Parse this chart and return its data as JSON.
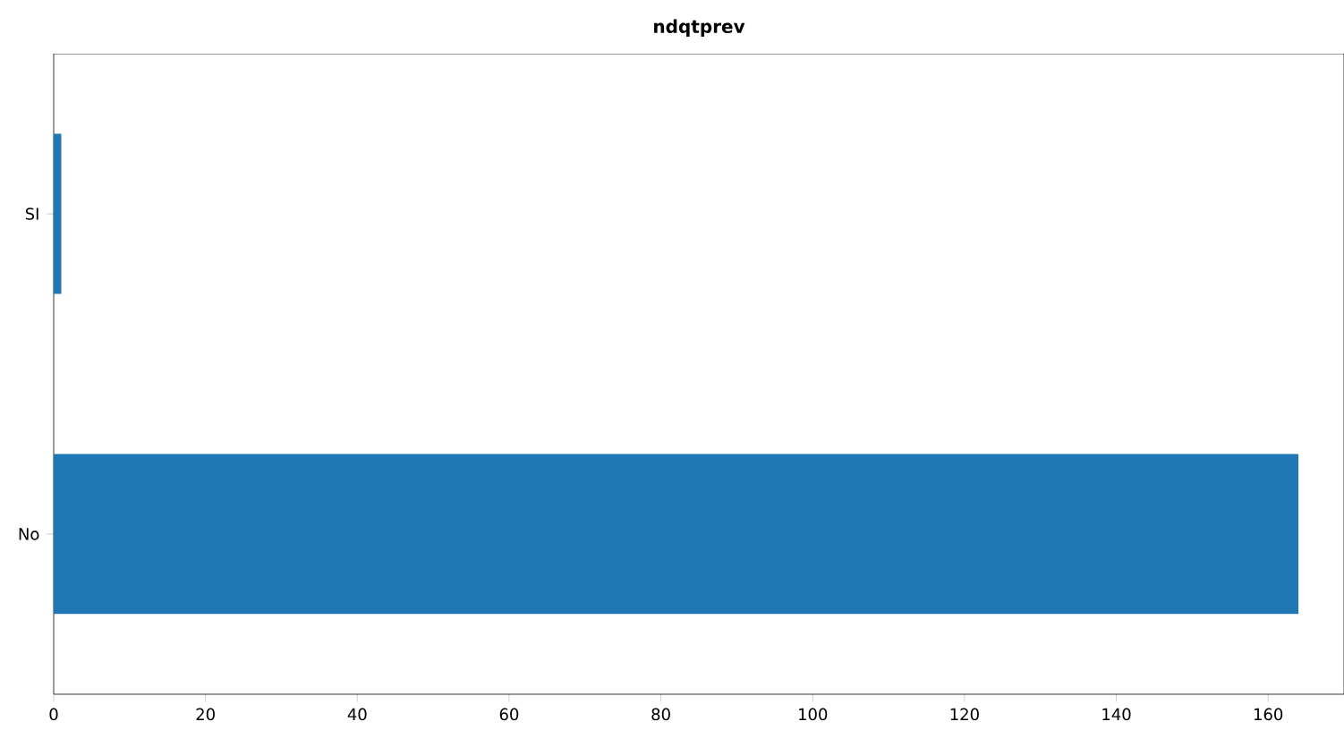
{
  "chart_data": {
    "type": "bar",
    "orientation": "horizontal",
    "title": "ndqtprev",
    "categories": [
      "SI",
      "No"
    ],
    "values": [
      1,
      164
    ],
    "color": "#1f77b4",
    "xlim": [
      0,
      170
    ],
    "xticks": [
      0,
      20,
      40,
      60,
      80,
      100,
      120,
      140,
      160
    ],
    "grid": false
  }
}
